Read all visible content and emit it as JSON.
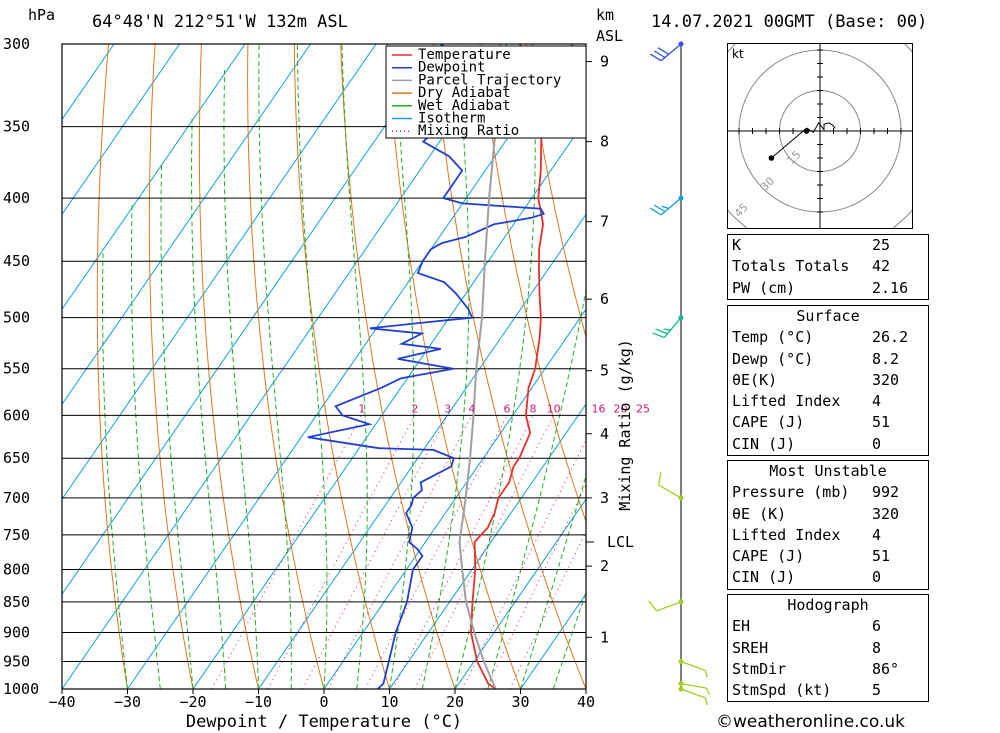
{
  "header": {
    "pressure_unit": "hPa",
    "station": "64°48'N 212°51'W 132m ASL",
    "height_unit_top": "km",
    "height_unit_bottom": "ASL",
    "datetime": "14.07.2021 00GMT (Base: 00)"
  },
  "chart_data": {
    "type": "line",
    "title": "64°48'N 212°51'W 132m ASL",
    "xlabel": "Dewpoint / Temperature (°C)",
    "ylabel": "hPa",
    "secondary_ylabel": "Mixing Ratio (g/kg)",
    "xlim": [
      -40,
      40
    ],
    "x_ticks": [
      -40,
      -30,
      -20,
      -10,
      0,
      10,
      20,
      30,
      40
    ],
    "x_tick_labels": [
      "−40",
      "−30",
      "−20",
      "−10",
      "0",
      "10",
      "20",
      "30",
      "40"
    ],
    "ylim": [
      1000,
      300
    ],
    "pressure_levels": [
      300,
      350,
      400,
      450,
      500,
      550,
      600,
      650,
      700,
      750,
      800,
      850,
      900,
      950,
      1000
    ],
    "km_ticks": [
      {
        "km": "1",
        "p": 908
      },
      {
        "km": "2",
        "p": 795
      },
      {
        "km": "3",
        "p": 700
      },
      {
        "km": "4",
        "p": 621
      },
      {
        "km": "5",
        "p": 552
      },
      {
        "km": "6",
        "p": 483
      },
      {
        "km": "7",
        "p": 418
      },
      {
        "km": "8",
        "p": 360
      },
      {
        "km": "9",
        "p": 310
      }
    ],
    "lcl": {
      "label": "LCL",
      "p": 760
    },
    "mixing_ratio_labels": [
      "1",
      "2",
      "3",
      "4",
      "6",
      "8",
      "10",
      "16",
      "20",
      "25"
    ],
    "mixing_ratio_values": [
      1,
      2,
      3,
      4,
      6,
      8,
      10,
      16,
      20,
      25
    ],
    "legend": [
      "Temperature",
      "Dewpoint",
      "Parcel Trajectory",
      "Dry Adiabat",
      "Wet Adiabat",
      "Isotherm",
      "Mixing Ratio"
    ],
    "legend_position": "top",
    "series": [
      {
        "name": "Temperature",
        "color": "#e8302a",
        "points": [
          [
            1000,
            26.2
          ],
          [
            990,
            24.5
          ],
          [
            950,
            20.5
          ],
          [
            900,
            16.5
          ],
          [
            850,
            13.5
          ],
          [
            800,
            10.5
          ],
          [
            760,
            7.5
          ],
          [
            740,
            8.0
          ],
          [
            720,
            7.5
          ],
          [
            700,
            6.5
          ],
          [
            680,
            6.5
          ],
          [
            660,
            5.5
          ],
          [
            650,
            5.5
          ],
          [
            620,
            4.5
          ],
          [
            600,
            2.0
          ],
          [
            570,
            -0.5
          ],
          [
            550,
            -1.5
          ],
          [
            520,
            -4.0
          ],
          [
            500,
            -6.0
          ],
          [
            480,
            -8.5
          ],
          [
            460,
            -11.0
          ],
          [
            440,
            -13.5
          ],
          [
            420,
            -15.5
          ],
          [
            400,
            -19.0
          ],
          [
            380,
            -21.5
          ],
          [
            360,
            -24.5
          ],
          [
            350,
            -26.0
          ],
          [
            330,
            -30.0
          ],
          [
            310,
            -35.5
          ],
          [
            300,
            -38.0
          ]
        ]
      },
      {
        "name": "Dewpoint",
        "color": "#2040d0",
        "points": [
          [
            1000,
            8.2
          ],
          [
            990,
            8.5
          ],
          [
            950,
            7.0
          ],
          [
            900,
            5.0
          ],
          [
            850,
            3.5
          ],
          [
            800,
            1.0
          ],
          [
            780,
            1.0
          ],
          [
            770,
            -0.5
          ],
          [
            760,
            -2.5
          ],
          [
            740,
            -3.5
          ],
          [
            720,
            -6.0
          ],
          [
            710,
            -6.0
          ],
          [
            700,
            -6.5
          ],
          [
            690,
            -6.0
          ],
          [
            680,
            -7.0
          ],
          [
            660,
            -4.0
          ],
          [
            650,
            -4.5
          ],
          [
            640,
            -8.5
          ],
          [
            638,
            -17.0
          ],
          [
            625,
            -29.0
          ],
          [
            610,
            -21.0
          ],
          [
            600,
            -26.0
          ],
          [
            590,
            -28.0
          ],
          [
            570,
            -23.0
          ],
          [
            560,
            -21.0
          ],
          [
            550,
            -14.0
          ],
          [
            540,
            -23.5
          ],
          [
            530,
            -18.0
          ],
          [
            525,
            -24.5
          ],
          [
            515,
            -22.5
          ],
          [
            510,
            -31.0
          ],
          [
            505,
            -24.0
          ],
          [
            500,
            -16.5
          ],
          [
            492,
            -18.0
          ],
          [
            478,
            -21.5
          ],
          [
            468,
            -24.5
          ],
          [
            460,
            -29.5
          ],
          [
            450,
            -30.0
          ],
          [
            440,
            -30.0
          ],
          [
            435,
            -29.0
          ],
          [
            430,
            -26.0
          ],
          [
            420,
            -23.0
          ],
          [
            415,
            -18.0
          ],
          [
            412,
            -16.5
          ],
          [
            408,
            -17.5
          ],
          [
            404,
            -30.0
          ],
          [
            400,
            -33.5
          ],
          [
            380,
            -33.5
          ],
          [
            370,
            -37.0
          ],
          [
            360,
            -42.5
          ],
          [
            352,
            -42.0
          ],
          [
            345,
            -37.0
          ],
          [
            340,
            -37.0
          ],
          [
            330,
            -39.0
          ],
          [
            320,
            -42.0
          ],
          [
            300,
            -50.0
          ]
        ]
      },
      {
        "name": "Parcel Trajectory",
        "color": "#a0a0a0",
        "points": [
          [
            1000,
            26.2
          ],
          [
            950,
            21.5
          ],
          [
            900,
            17.0
          ],
          [
            850,
            12.5
          ],
          [
            800,
            8.5
          ],
          [
            760,
            5.2
          ],
          [
            700,
            1.5
          ],
          [
            650,
            -2.0
          ],
          [
            600,
            -6.0
          ],
          [
            550,
            -10.5
          ],
          [
            500,
            -15.0
          ],
          [
            450,
            -20.5
          ],
          [
            400,
            -26.5
          ],
          [
            350,
            -33.0
          ],
          [
            300,
            -41.0
          ]
        ]
      }
    ],
    "winds": [
      {
        "p": 1000,
        "dir": 110,
        "kt": 5
      },
      {
        "p": 990,
        "dir": 100,
        "kt": 5
      },
      {
        "p": 950,
        "dir": 110,
        "kt": 5
      },
      {
        "p": 850,
        "dir": 250,
        "kt": 10
      },
      {
        "p": 700,
        "dir": 300,
        "kt": 10
      },
      {
        "p": 500,
        "dir": 220,
        "kt": 25
      },
      {
        "p": 400,
        "dir": 230,
        "kt": 25
      },
      {
        "p": 300,
        "dir": 230,
        "kt": 30
      }
    ]
  },
  "hodograph": {
    "unit": "kt",
    "ring_labels": [
      "15",
      "30",
      "45"
    ],
    "ring_values": [
      15,
      30,
      45
    ],
    "trace_uv": [
      [
        -4.9,
        1.1
      ],
      [
        -2.5,
        -0.5
      ],
      [
        -0.5,
        3
      ],
      [
        1.5,
        0.5
      ],
      [
        1.5,
        2.5
      ],
      [
        2.5,
        2.8
      ],
      [
        3.4,
        3.0
      ],
      [
        4.9,
        2.0
      ],
      [
        5.6,
        1.0
      ]
    ],
    "storm_uv": [
      -5,
      0
    ],
    "outer_point_uv": [
      -18.0,
      -10.0
    ]
  },
  "indices": {
    "k_label": "K",
    "k_value": "25",
    "tt_label": "Totals Totals",
    "tt_value": "42",
    "pw_label": "PW (cm)",
    "pw_value": "2.16"
  },
  "surface": {
    "title": "Surface",
    "rows": [
      {
        "label": "Temp (°C)",
        "value": "26.2"
      },
      {
        "label": "Dewp (°C)",
        "value": "8.2"
      },
      {
        "label": "θE(K)",
        "value": "320"
      },
      {
        "label": "Lifted Index",
        "value": "4"
      },
      {
        "label": "CAPE (J)",
        "value": "51"
      },
      {
        "label": "CIN (J)",
        "value": "0"
      }
    ]
  },
  "most_unstable": {
    "title": "Most Unstable",
    "rows": [
      {
        "label": "Pressure (mb)",
        "value": "992"
      },
      {
        "label": "θE (K)",
        "value": "320"
      },
      {
        "label": "Lifted Index",
        "value": "4"
      },
      {
        "label": "CAPE (J)",
        "value": "51"
      },
      {
        "label": "CIN (J)",
        "value": "0"
      }
    ]
  },
  "hodograph_table": {
    "title": "Hodograph",
    "rows": [
      {
        "label": "EH",
        "value": "6"
      },
      {
        "label": "SREH",
        "value": "8"
      },
      {
        "label": "StmDir",
        "value": "86°"
      },
      {
        "label": "StmSpd (kt)",
        "value": "5"
      }
    ]
  },
  "footer": {
    "copyright": "©weatheronline.co.uk"
  },
  "colors": {
    "temperature": "#e8302a",
    "dewpoint": "#2040d0",
    "parcel": "#a0a0a0",
    "dry_adiabat": "#e07820",
    "wet_adiabat": "#20b020",
    "isotherm": "#10a0e0",
    "mixing_ratio": "#d01880"
  }
}
